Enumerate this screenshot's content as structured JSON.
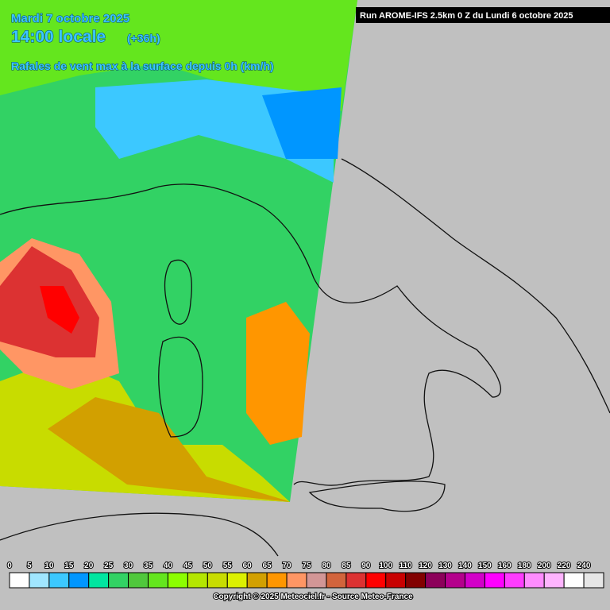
{
  "header": {
    "date": "Mardi 7 octobre 2025",
    "time": "14:00 locale",
    "lead": "(+36h)",
    "parameter": "Rafales de vent max à la surface depuis 0h (km/h)",
    "run": "Run AROME-IFS 2.5km 0 Z du Lundi 6 octobre 2025"
  },
  "legend": {
    "items": [
      {
        "label": 0,
        "color": "#ffffff"
      },
      {
        "label": 5,
        "color": "#a0e6ff"
      },
      {
        "label": 10,
        "color": "#3cc8ff"
      },
      {
        "label": 15,
        "color": "#0096ff"
      },
      {
        "label": 20,
        "color": "#00e6a0"
      },
      {
        "label": 25,
        "color": "#32d264"
      },
      {
        "label": 30,
        "color": "#50c83c"
      },
      {
        "label": 35,
        "color": "#64e61e"
      },
      {
        "label": 40,
        "color": "#8cff00"
      },
      {
        "label": 45,
        "color": "#b4e600"
      },
      {
        "label": 50,
        "color": "#c8dc00"
      },
      {
        "label": 55,
        "color": "#dcf000"
      },
      {
        "label": 60,
        "color": "#d2a000"
      },
      {
        "label": 65,
        "color": "#ff9600"
      },
      {
        "label": 70,
        "color": "#ff9664"
      },
      {
        "label": 75,
        "color": "#d29696"
      },
      {
        "label": 80,
        "color": "#d2643c"
      },
      {
        "label": 85,
        "color": "#dc3232"
      },
      {
        "label": 90,
        "color": "#ff0000"
      },
      {
        "label": 100,
        "color": "#c80000"
      },
      {
        "label": 110,
        "color": "#820000"
      },
      {
        "label": 120,
        "color": "#8c005a"
      },
      {
        "label": 130,
        "color": "#b4008c"
      },
      {
        "label": 140,
        "color": "#d200c8"
      },
      {
        "label": 150,
        "color": "#ff00ff"
      },
      {
        "label": 160,
        "color": "#ff3cff"
      },
      {
        "label": 180,
        "color": "#ff8cff"
      },
      {
        "label": 200,
        "color": "#ffb4ff"
      },
      {
        "label": 220,
        "color": "#ffffff"
      },
      {
        "label": 240,
        "color": "#e6e6e6"
      }
    ]
  },
  "footer": {
    "copyright": "Copyright © 2025 Meteociel.fr - Source Meteo-France"
  }
}
